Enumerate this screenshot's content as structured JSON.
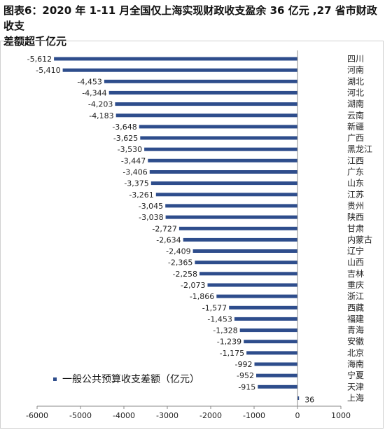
{
  "header": {
    "title_line1": "图表6：2020 年 1-11 月全国仅上海实现财政收支盈余 36 亿元 ,27 省市财政收支",
    "title_line2": "差额超千亿元"
  },
  "chart_data": {
    "type": "bar",
    "orientation": "horizontal",
    "categories": [
      "四川",
      "河南",
      "湖北",
      "河北",
      "湖南",
      "云南",
      "新疆",
      "广西",
      "黑龙江",
      "江西",
      "广东",
      "山东",
      "江苏",
      "贵州",
      "陕西",
      "甘肃",
      "内蒙古",
      "辽宁",
      "山西",
      "吉林",
      "重庆",
      "浙江",
      "西藏",
      "福建",
      "青海",
      "安徽",
      "北京",
      "海南",
      "宁夏",
      "天津",
      "上海"
    ],
    "series": [
      {
        "name": "一般公共预算收支差额（亿元）",
        "values": [
          -5612,
          -5410,
          -4453,
          -4344,
          -4203,
          -4183,
          -3648,
          -3625,
          -3530,
          -3447,
          -3406,
          -3375,
          -3261,
          -3045,
          -3038,
          -2727,
          -2634,
          -2409,
          -2365,
          -2258,
          -2073,
          -1866,
          -1577,
          -1453,
          -1328,
          -1239,
          -1175,
          -992,
          -952,
          -915,
          36
        ],
        "labels": [
          "-5,612",
          "-5,410",
          "-4,453",
          "-4,344",
          "-4,203",
          "-4,183",
          "-3,648",
          "-3,625",
          "-3,530",
          "-3,447",
          "-3,406",
          "-3,375",
          "-3,261",
          "-3,045",
          "-3,038",
          "-2,727",
          "-2,634",
          "-2,409",
          "-2,365",
          "-2,258",
          "-2,073",
          "-1,866",
          "-1,577",
          "-1,453",
          "-1,328",
          "-1,239",
          "-1,175",
          "-992",
          "-952",
          "-915",
          "36"
        ]
      }
    ],
    "xlim": [
      -6000,
      1000
    ],
    "xticks": [
      -6000,
      -5000,
      -4000,
      -3000,
      -2000,
      -1000,
      0,
      1000
    ],
    "xtick_labels": [
      "-6000",
      "-5000",
      "-4000",
      "-3000",
      "-2000",
      "-1000",
      "0",
      "1000"
    ],
    "grid": false,
    "legend_position": "bottom-left",
    "colors": {
      "bar": "#2e4d8c",
      "axis": "#888888",
      "text": "#222222"
    }
  }
}
